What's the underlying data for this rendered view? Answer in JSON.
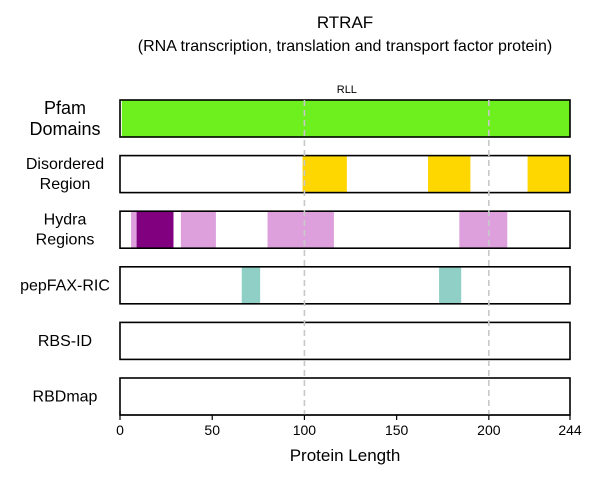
{
  "chart_data": {
    "type": "bar",
    "title": "RTRAF",
    "subtitle": "(RNA transcription, translation and transport factor protein)",
    "xlabel": "Protein Length",
    "xlim": [
      0,
      244
    ],
    "xticks": [
      0,
      50,
      100,
      150,
      200,
      244
    ],
    "reference_lines": [
      100,
      200
    ],
    "annotations": [
      {
        "text": "RLL",
        "x": 123
      }
    ],
    "tracks": [
      {
        "label_lines": [
          "Pfam",
          "Domains"
        ],
        "segments": [
          {
            "start": 1,
            "end": 244,
            "color": "#6ef01f"
          }
        ]
      },
      {
        "label_lines": [
          "Disordered",
          "Region"
        ],
        "segments": [
          {
            "start": 99,
            "end": 123,
            "color": "#ffd700"
          },
          {
            "start": 167,
            "end": 190,
            "color": "#ffd700"
          },
          {
            "start": 221,
            "end": 244,
            "color": "#ffd700"
          }
        ]
      },
      {
        "label_lines": [
          "Hydra",
          "Regions"
        ],
        "segments": [
          {
            "start": 6,
            "end": 9,
            "color": "#dda0dd"
          },
          {
            "start": 9,
            "end": 29,
            "color": "#800080"
          },
          {
            "start": 33,
            "end": 52,
            "color": "#dda0dd"
          },
          {
            "start": 80,
            "end": 116,
            "color": "#dda0dd"
          },
          {
            "start": 184,
            "end": 210,
            "color": "#dda0dd"
          }
        ]
      },
      {
        "label_lines": [
          "pepFAX-RIC"
        ],
        "segments": [
          {
            "start": 66,
            "end": 76,
            "color": "#8fcfc6"
          },
          {
            "start": 173,
            "end": 185,
            "color": "#8fcfc6"
          }
        ]
      },
      {
        "label_lines": [
          "RBS-ID"
        ],
        "segments": []
      },
      {
        "label_lines": [
          "RBDmap"
        ],
        "segments": []
      }
    ]
  }
}
